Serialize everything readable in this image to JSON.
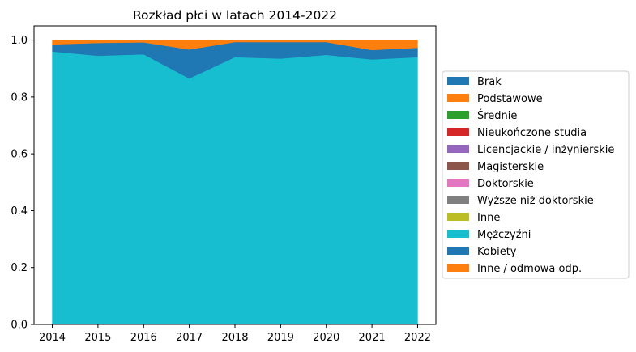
{
  "chart_data": {
    "type": "area",
    "stacked": true,
    "title": "Rozkład płci w latach 2014-2022",
    "xlabel": "",
    "ylabel": "",
    "x": [
      2014,
      2015,
      2016,
      2017,
      2018,
      2019,
      2020,
      2021,
      2022
    ],
    "xlim": [
      2013.6,
      2022.4
    ],
    "ylim": [
      0,
      1.05
    ],
    "yticks": [
      "0.0",
      "0.2",
      "0.4",
      "0.6",
      "0.8",
      "1.0"
    ],
    "grid": false,
    "legend_position": "center-right (outside plot)",
    "series": [
      {
        "name": "Brak",
        "color": "#1f77b4",
        "values": [
          0,
          0,
          0,
          0,
          0,
          0,
          0,
          0,
          0
        ]
      },
      {
        "name": "Podstawowe",
        "color": "#ff7f0e",
        "values": [
          0,
          0,
          0,
          0,
          0,
          0,
          0,
          0,
          0
        ]
      },
      {
        "name": "Średnie",
        "color": "#2ca02c",
        "values": [
          0,
          0,
          0,
          0,
          0,
          0,
          0,
          0,
          0
        ]
      },
      {
        "name": "Nieukończone studia",
        "color": "#d62728",
        "values": [
          0,
          0,
          0,
          0,
          0,
          0,
          0,
          0,
          0
        ]
      },
      {
        "name": "Licencjackie / inżynierskie",
        "color": "#9467bd",
        "values": [
          0,
          0,
          0,
          0,
          0,
          0,
          0,
          0,
          0
        ]
      },
      {
        "name": "Magisterskie",
        "color": "#8c564b",
        "values": [
          0,
          0,
          0,
          0,
          0,
          0,
          0,
          0,
          0
        ]
      },
      {
        "name": "Doktorskie",
        "color": "#e377c2",
        "values": [
          0,
          0,
          0,
          0,
          0,
          0,
          0,
          0,
          0
        ]
      },
      {
        "name": "Wyższe niż doktorskie",
        "color": "#7f7f7f",
        "values": [
          0,
          0,
          0,
          0,
          0,
          0,
          0,
          0,
          0
        ]
      },
      {
        "name": "Inne",
        "color": "#bcbd22",
        "values": [
          0,
          0,
          0,
          0,
          0,
          0,
          0,
          0,
          0
        ]
      },
      {
        "name": "Mężczyźni",
        "color": "#17becf",
        "values": [
          0.96,
          0.945,
          0.95,
          0.865,
          0.94,
          0.935,
          0.948,
          0.932,
          0.94
        ]
      },
      {
        "name": "Kobiety",
        "color": "#1f77b4",
        "values": [
          0.025,
          0.045,
          0.042,
          0.102,
          0.053,
          0.058,
          0.045,
          0.033,
          0.033
        ]
      },
      {
        "name": "Inne / odmowa odp.",
        "color": "#ff7f0e",
        "values": [
          0.015,
          0.01,
          0.008,
          0.033,
          0.007,
          0.007,
          0.007,
          0.035,
          0.027
        ]
      }
    ]
  }
}
